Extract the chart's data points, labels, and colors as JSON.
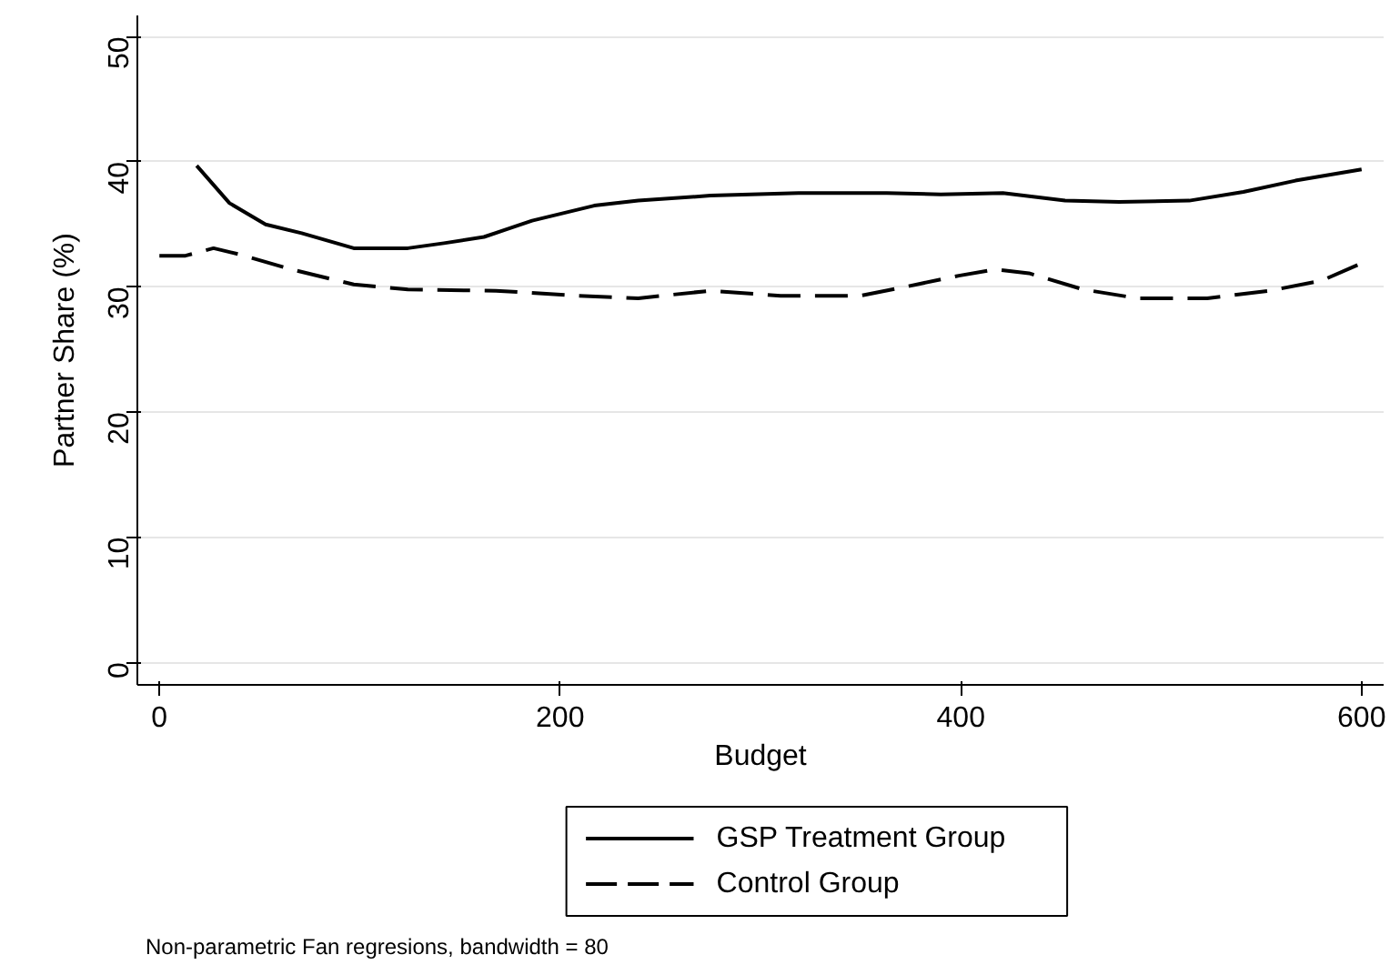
{
  "chart_data": {
    "type": "line",
    "xlabel": "Budget",
    "ylabel": "Partner Share (%)",
    "xlim": [
      -11,
      611
    ],
    "ylim": [
      -1.8,
      51.7
    ],
    "xticks": [
      0,
      200,
      400,
      600
    ],
    "yticks": [
      0,
      10,
      20,
      30,
      40,
      50
    ],
    "grid": "y",
    "legend": "bottom",
    "annotations": [
      "Non-parametric Fan regresions, bandwidth = 80"
    ],
    "series": [
      {
        "name": "GSP Treatment Group",
        "color": "#000000",
        "line_style": "solid",
        "x": [
          18.6,
          35,
          53,
          71,
          97,
          124,
          142,
          162,
          186,
          217,
          239,
          275,
          319,
          363,
          390,
          421,
          452,
          479,
          514,
          541,
          567,
          600
        ],
        "values": [
          39.7,
          36.7,
          35.0,
          34.3,
          33.1,
          33.1,
          33.5,
          34.0,
          35.3,
          36.5,
          36.9,
          37.3,
          37.5,
          37.5,
          37.4,
          37.5,
          36.9,
          36.8,
          36.9,
          37.6,
          38.5,
          39.4
        ]
      },
      {
        "name": "Control Group",
        "color": "#000000",
        "line_style": "dashed",
        "x": [
          0,
          13,
          27,
          40,
          66,
          97,
          124,
          168,
          208,
          239,
          275,
          310,
          350,
          372,
          399,
          417,
          434,
          461,
          488,
          523,
          554,
          580,
          600
        ],
        "values": [
          32.5,
          32.5,
          33.1,
          32.6,
          31.4,
          30.2,
          29.8,
          29.7,
          29.3,
          29.1,
          29.7,
          29.3,
          29.3,
          30.0,
          30.9,
          31.4,
          31.1,
          29.8,
          29.1,
          29.1,
          29.7,
          30.5,
          31.9
        ]
      }
    ]
  }
}
